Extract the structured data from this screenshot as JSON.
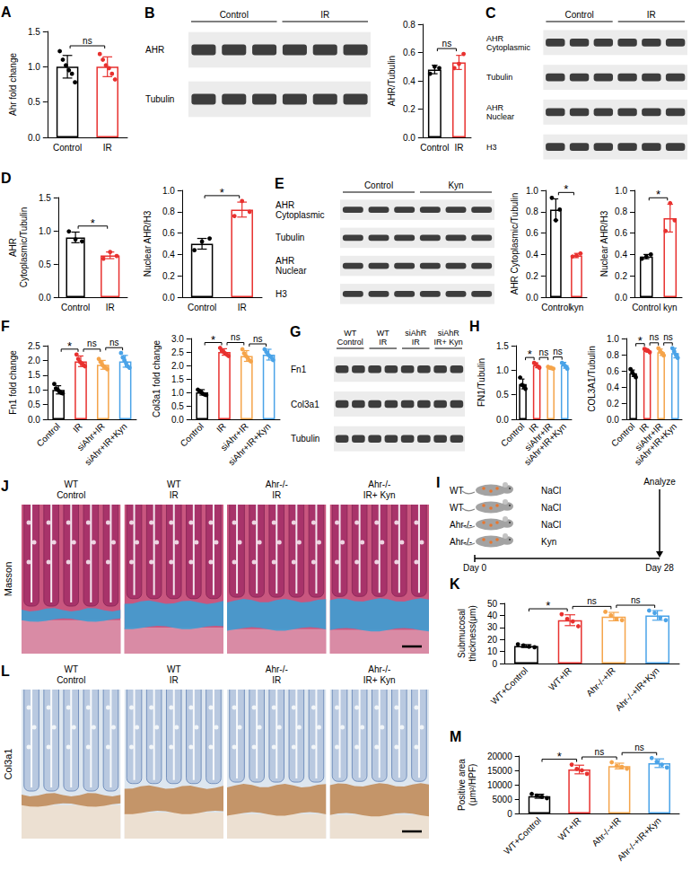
{
  "chart_data": [
    {
      "letter": "A",
      "type": "bar",
      "ylabel": "Ahr fold change",
      "categories": [
        "Control",
        "IR"
      ],
      "values": [
        1.0,
        1.0
      ],
      "errors": [
        0.16,
        0.14
      ],
      "points": [
        [
          1.22,
          1.1,
          1.02,
          0.95,
          0.9,
          0.78
        ],
        [
          1.18,
          1.1,
          1.02,
          0.98,
          0.9,
          0.82
        ]
      ],
      "colors": [
        "#000000",
        "#e8312f"
      ],
      "ylim": [
        0,
        1.5
      ],
      "yticks": [
        {
          "value": 0,
          "label": "0.0"
        },
        {
          "value": 0.5,
          "label": "0.5"
        },
        {
          "value": 1,
          "label": "1.0"
        },
        {
          "value": 1.5,
          "label": "1.5"
        }
      ],
      "grid": false,
      "annotations": [
        {
          "between": [
            0,
            1
          ],
          "text": "ns"
        }
      ]
    },
    {
      "type": "bar",
      "ylabel": "AHR/Tubulin",
      "categories": [
        "Control",
        "IR"
      ],
      "values": [
        0.48,
        0.53
      ],
      "errors": [
        0.03,
        0.05
      ],
      "points": [
        [
          0.45,
          0.5,
          0.49
        ],
        [
          0.49,
          0.52,
          0.59
        ]
      ],
      "colors": [
        "#000000",
        "#e8312f"
      ],
      "ylim": [
        0,
        0.8
      ],
      "yticks": [
        {
          "value": 0,
          "label": "0.0"
        },
        {
          "value": 0.2,
          "label": "0.2"
        },
        {
          "value": 0.4,
          "label": "0.4"
        },
        {
          "value": 0.6,
          "label": "0.6"
        },
        {
          "value": 0.8,
          "label": "0.8"
        }
      ],
      "grid": false,
      "annotations": [
        {
          "between": [
            0,
            1
          ],
          "text": "ns"
        }
      ]
    },
    {
      "letter": "D",
      "type": "bar",
      "ylabel": "AHR Cytoplasmic/Tubulin",
      "categories": [
        "Control",
        "IR"
      ],
      "values": [
        0.9,
        0.63
      ],
      "errors": [
        0.08,
        0.05
      ],
      "points": [
        [
          0.99,
          0.87,
          0.84
        ],
        [
          0.58,
          0.68,
          0.62
        ]
      ],
      "colors": [
        "#000000",
        "#e8312f"
      ],
      "ylim": [
        0,
        1.5
      ],
      "yticks": [
        {
          "value": 0,
          "label": "0.0"
        },
        {
          "value": 0.5,
          "label": "0.5"
        },
        {
          "value": 1,
          "label": "1.0"
        },
        {
          "value": 1.5,
          "label": "1.5"
        }
      ],
      "grid": false,
      "annotations": [
        {
          "between": [
            0,
            1
          ],
          "text": "*"
        }
      ]
    },
    {
      "type": "bar",
      "ylabel": "Nuclear AHR/H3",
      "categories": [
        "Control",
        "IR"
      ],
      "values": [
        0.5,
        0.82
      ],
      "errors": [
        0.05,
        0.07
      ],
      "points": [
        [
          0.44,
          0.52,
          0.55
        ],
        [
          0.76,
          0.9,
          0.8
        ]
      ],
      "colors": [
        "#000000",
        "#e8312f"
      ],
      "ylim": [
        0,
        1
      ],
      "yticks": [
        {
          "value": 0,
          "label": "0.0"
        },
        {
          "value": 0.2,
          "label": "0.2"
        },
        {
          "value": 0.4,
          "label": "0.4"
        },
        {
          "value": 0.6,
          "label": "0.6"
        },
        {
          "value": 0.8,
          "label": "0.8"
        },
        {
          "value": 1,
          "label": "1.0"
        }
      ],
      "grid": false,
      "annotations": [
        {
          "between": [
            0,
            1
          ],
          "text": "*"
        }
      ]
    },
    {
      "type": "bar",
      "ylabel": "AHR Cytoplasmic/Tubulin",
      "categories": [
        "Control",
        "kyn"
      ],
      "values": [
        0.82,
        0.39
      ],
      "errors": [
        0.1,
        0.02
      ],
      "points": [
        [
          0.93,
          0.72,
          0.82
        ],
        [
          0.38,
          0.39,
          0.41
        ]
      ],
      "colors": [
        "#000000",
        "#e8312f"
      ],
      "ylim": [
        0,
        1
      ],
      "yticks": [
        {
          "value": 0,
          "label": "0.0"
        },
        {
          "value": 0.2,
          "label": "0.2"
        },
        {
          "value": 0.4,
          "label": "0.4"
        },
        {
          "value": 0.6,
          "label": "0.6"
        },
        {
          "value": 0.8,
          "label": "0.8"
        },
        {
          "value": 1,
          "label": "1.0"
        }
      ],
      "grid": false,
      "annotations": [
        {
          "between": [
            0,
            1
          ],
          "text": "*"
        }
      ]
    },
    {
      "type": "bar",
      "ylabel": "Nuclear AHR/H3",
      "categories": [
        "Control",
        "kyn"
      ],
      "values": [
        0.38,
        0.74
      ],
      "errors": [
        0.02,
        0.13
      ],
      "points": [
        [
          0.36,
          0.38,
          0.4
        ],
        [
          0.62,
          0.88,
          0.72
        ]
      ],
      "colors": [
        "#000000",
        "#e8312f"
      ],
      "ylim": [
        0,
        1
      ],
      "yticks": [
        {
          "value": 0,
          "label": "0.0"
        },
        {
          "value": 0.2,
          "label": "0.2"
        },
        {
          "value": 0.4,
          "label": "0.4"
        },
        {
          "value": 0.6,
          "label": "0.6"
        },
        {
          "value": 0.8,
          "label": "0.8"
        },
        {
          "value": 1,
          "label": "1.0"
        }
      ],
      "grid": false,
      "annotations": [
        {
          "between": [
            0,
            1
          ],
          "text": "*"
        }
      ]
    },
    {
      "letter": "F",
      "type": "bar",
      "ylabel": "Fn1 fold change",
      "categories": [
        "Control",
        "IR",
        "siAhr+IR",
        "siAhr+IR+Kyn"
      ],
      "values": [
        1.0,
        1.97,
        1.85,
        1.97
      ],
      "errors": [
        0.14,
        0.18,
        0.15,
        0.2
      ],
      "points": [
        [
          1.2,
          1.05,
          1.0,
          0.95,
          0.9,
          0.88
        ],
        [
          2.2,
          2.05,
          1.95,
          1.9,
          1.85,
          1.8
        ],
        [
          2.05,
          1.95,
          1.85,
          1.8,
          1.75,
          1.7
        ],
        [
          2.25,
          2.1,
          2.0,
          1.9,
          1.8,
          1.75
        ]
      ],
      "colors": [
        "#000000",
        "#e8312f",
        "#f5a44a",
        "#4aa3e8"
      ],
      "ylim": [
        0,
        2.5
      ],
      "yticks": [
        {
          "value": 0,
          "label": "0.0"
        },
        {
          "value": 0.5,
          "label": "0.5"
        },
        {
          "value": 1,
          "label": "1.0"
        },
        {
          "value": 1.5,
          "label": "1.5"
        },
        {
          "value": 2,
          "label": "2.0"
        },
        {
          "value": 2.5,
          "label": "2.5"
        }
      ],
      "grid": false,
      "annotations": [
        {
          "between": [
            0,
            1
          ],
          "text": "*"
        },
        {
          "between": [
            1,
            2
          ],
          "text": "ns"
        },
        {
          "between": [
            2,
            3
          ],
          "text": "ns"
        }
      ]
    },
    {
      "type": "bar",
      "ylabel": "Col3a1 fold change",
      "categories": [
        "Control",
        "IR",
        "siAhr+IR",
        "siAhr+IR+Kyn"
      ],
      "values": [
        1.0,
        2.5,
        2.35,
        2.4
      ],
      "errors": [
        0.1,
        0.12,
        0.2,
        0.2
      ],
      "points": [
        [
          1.1,
          1.05,
          1.0,
          0.95,
          0.92,
          0.9
        ],
        [
          2.65,
          2.55,
          2.5,
          2.45,
          2.4,
          2.35
        ],
        [
          2.6,
          2.45,
          2.35,
          2.3,
          2.2,
          2.15
        ],
        [
          2.6,
          2.5,
          2.4,
          2.35,
          2.3,
          2.2
        ]
      ],
      "colors": [
        "#000000",
        "#e8312f",
        "#f5a44a",
        "#4aa3e8"
      ],
      "ylim": [
        0,
        3
      ],
      "yticks": [
        {
          "value": 0,
          "label": "0.0"
        },
        {
          "value": 0.5,
          "label": "0.5"
        },
        {
          "value": 1,
          "label": "1.0"
        },
        {
          "value": 1.5,
          "label": "1.5"
        },
        {
          "value": 2,
          "label": "2.0"
        },
        {
          "value": 2.5,
          "label": "2.5"
        },
        {
          "value": 3,
          "label": "3.0"
        }
      ],
      "grid": false,
      "annotations": [
        {
          "between": [
            0,
            1
          ],
          "text": "*"
        },
        {
          "between": [
            1,
            2
          ],
          "text": "ns"
        },
        {
          "between": [
            2,
            3
          ],
          "text": "ns"
        }
      ]
    },
    {
      "letter": "H",
      "type": "bar",
      "ylabel": "FN1/Tubulin",
      "categories": [
        "Control",
        "IR",
        "siAhr+IR",
        "siAhr+IR+Kyn"
      ],
      "values": [
        0.72,
        1.1,
        1.05,
        1.1
      ],
      "errors": [
        0.1,
        0.05,
        0.03,
        0.06
      ],
      "points": [
        [
          0.85,
          0.7,
          0.68,
          0.62
        ],
        [
          1.15,
          1.12,
          1.08,
          1.05
        ],
        [
          1.07,
          1.05,
          1.04,
          1.03
        ],
        [
          1.15,
          1.12,
          1.08,
          1.03
        ]
      ],
      "colors": [
        "#000000",
        "#e8312f",
        "#f5a44a",
        "#4aa3e8"
      ],
      "ylim": [
        0,
        1.5
      ],
      "yticks": [
        {
          "value": 0,
          "label": "0.0"
        },
        {
          "value": 0.5,
          "label": "0.5"
        },
        {
          "value": 1,
          "label": "1.0"
        },
        {
          "value": 1.5,
          "label": "1.5"
        }
      ],
      "grid": false,
      "annotations": [
        {
          "between": [
            0,
            1
          ],
          "text": "*"
        },
        {
          "between": [
            1,
            2
          ],
          "text": "ns"
        },
        {
          "between": [
            2,
            3
          ],
          "text": "ns"
        }
      ]
    },
    {
      "type": "bar",
      "ylabel": "COL3A1/Tubulin",
      "categories": [
        "Control",
        "IR",
        "siAhr+IR",
        "siAhr+IR+Kyn"
      ],
      "values": [
        0.57,
        0.85,
        0.83,
        0.82
      ],
      "errors": [
        0.04,
        0.02,
        0.04,
        0.06
      ],
      "points": [
        [
          0.62,
          0.58,
          0.55,
          0.52
        ],
        [
          0.87,
          0.86,
          0.85,
          0.83
        ],
        [
          0.88,
          0.84,
          0.82,
          0.79
        ],
        [
          0.88,
          0.84,
          0.8,
          0.76
        ]
      ],
      "colors": [
        "#000000",
        "#e8312f",
        "#f5a44a",
        "#4aa3e8"
      ],
      "ylim": [
        0,
        1
      ],
      "yticks": [
        {
          "value": 0,
          "label": "0.0"
        },
        {
          "value": 0.2,
          "label": "0.2"
        },
        {
          "value": 0.4,
          "label": "0.4"
        },
        {
          "value": 0.6,
          "label": "0.6"
        },
        {
          "value": 0.8,
          "label": "0.8"
        },
        {
          "value": 1,
          "label": "1.0"
        }
      ],
      "grid": false,
      "annotations": [
        {
          "between": [
            0,
            1
          ],
          "text": "*"
        },
        {
          "between": [
            1,
            2
          ],
          "text": "ns"
        },
        {
          "between": [
            2,
            3
          ],
          "text": "ns"
        }
      ]
    },
    {
      "letter": "K",
      "type": "bar",
      "ylabel": "Submucosal thickness(μm)",
      "categories": [
        "WT+Control",
        "WT+IR",
        "Ahr-/-+IR",
        "Ahr-/-+IR+Kyn"
      ],
      "values": [
        14.5,
        36,
        39,
        40
      ],
      "errors": [
        1.2,
        4.5,
        3.5,
        4
      ],
      "points": [
        [
          16,
          15,
          14,
          13.5
        ],
        [
          41,
          37,
          35,
          31
        ],
        [
          43,
          40,
          37,
          36
        ],
        [
          44,
          42,
          38,
          36
        ]
      ],
      "colors": [
        "#000000",
        "#e8312f",
        "#f5a44a",
        "#4aa3e8"
      ],
      "ylim": [
        0,
        50
      ],
      "yticks": [
        0,
        10,
        20,
        30,
        40,
        50
      ],
      "grid": false,
      "annotations": [
        {
          "between": [
            0,
            1
          ],
          "text": "*"
        },
        {
          "between": [
            1,
            2
          ],
          "text": "ns"
        },
        {
          "between": [
            2,
            3
          ],
          "text": "ns"
        }
      ]
    },
    {
      "letter": "M",
      "type": "bar",
      "ylabel": "Positive area(μm²/HPF)",
      "categories": [
        "WT+Control",
        "WT+IR",
        "Ahr-/-+IR",
        "Ahr-/-+IR+Kyn"
      ],
      "values": [
        6000,
        15300,
        16500,
        17500
      ],
      "errors": [
        700,
        1500,
        1000,
        1500
      ],
      "points": [
        [
          6800,
          6200,
          5800,
          5300
        ],
        [
          17000,
          15500,
          15000,
          13800
        ],
        [
          17800,
          16500,
          16200,
          15600
        ],
        [
          19300,
          18000,
          17000,
          16000
        ]
      ],
      "colors": [
        "#000000",
        "#e8312f",
        "#f5a44a",
        "#4aa3e8"
      ],
      "ylim": [
        0,
        20000
      ],
      "yticks": [
        0,
        5000,
        10000,
        15000,
        20000
      ],
      "grid": false,
      "annotations": [
        {
          "between": [
            0,
            1
          ],
          "text": "*"
        },
        {
          "between": [
            1,
            2
          ],
          "text": "ns"
        },
        {
          "between": [
            2,
            3
          ],
          "text": "ns"
        }
      ]
    }
  ],
  "blots": [
    {
      "letter": "B",
      "groups": [
        "Control",
        "IR"
      ],
      "lanes": [
        3,
        3
      ],
      "rows": [
        "AHR",
        "Tubulin"
      ]
    },
    {
      "letter": "C",
      "groups": [
        "Control",
        "IR"
      ],
      "lanes": [
        3,
        3
      ],
      "rows": [
        "AHR Cytoplasmic",
        "Tubulin",
        "AHR Nuclear",
        "H3"
      ]
    },
    {
      "letter": "E",
      "groups": [
        "Control",
        "Kyn"
      ],
      "lanes": [
        3,
        3
      ],
      "rows": [
        "AHR Cytoplasmic",
        "Tubulin",
        "AHR Nuclear",
        "H3"
      ]
    },
    {
      "letter": "G",
      "groups": [
        "WT Control",
        "WT IR",
        "siAhR IR",
        "siAhR IR+ Kyn"
      ],
      "lanes": [
        2,
        2,
        2,
        2
      ],
      "rows": [
        "Fn1",
        "Col3a1",
        "Tubulin"
      ]
    }
  ],
  "schematic": {
    "letter": "I",
    "mice": [
      {
        "label": "WT",
        "treatment": "NaCl"
      },
      {
        "label": "WT",
        "treatment": "NaCl"
      },
      {
        "label": "Ahr-/-",
        "treatment": "NaCl"
      },
      {
        "label": "Ahr-/-",
        "treatment": "Kyn"
      }
    ],
    "start": "Day 0",
    "end": "Day 28",
    "endpoint": "Analyze"
  },
  "images": [
    {
      "letter": "J",
      "row_label": "Masson",
      "columns": [
        "WT Control",
        "WT IR",
        "Ahr-/- IR",
        "Ahr-/- IR+ Kyn"
      ]
    },
    {
      "letter": "L",
      "row_label": "Col3a1",
      "columns": [
        "WT Control",
        "WT IR",
        "Ahr-/- IR",
        "Ahr-/- IR+ Kyn"
      ]
    }
  ]
}
